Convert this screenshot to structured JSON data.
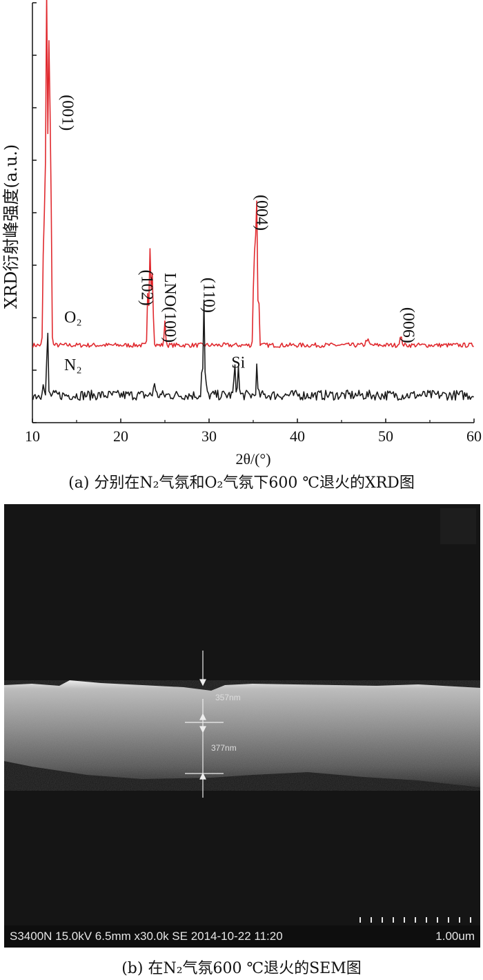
{
  "chart_data": {
    "type": "line",
    "xlabel": "2θ/(°)",
    "ylabel": "XRD衍射峰强度(a.u.)",
    "xlim": [
      10,
      60
    ],
    "x_ticks": [
      "10",
      "20",
      "30",
      "40",
      "50",
      "60"
    ],
    "series": [
      {
        "name": "O₂",
        "color": "#e0282d",
        "baseline": 1.55,
        "peaks": [
          {
            "x": 11.3,
            "y": 2.8,
            "w": 0.12
          },
          {
            "x": 11.6,
            "y": 7.0,
            "w": 0.14
          },
          {
            "x": 11.9,
            "y": 6.2,
            "w": 0.14
          },
          {
            "x": 12.1,
            "y": 2.5,
            "w": 0.1
          },
          {
            "x": 23.1,
            "y": 1.3,
            "w": 0.1
          },
          {
            "x": 23.35,
            "y": 2.3,
            "w": 0.1
          },
          {
            "x": 23.6,
            "y": 1.6,
            "w": 0.1
          },
          {
            "x": 25.0,
            "y": 0.45,
            "w": 0.12
          },
          {
            "x": 35.1,
            "y": 2.0,
            "w": 0.12
          },
          {
            "x": 35.35,
            "y": 3.7,
            "w": 0.1
          },
          {
            "x": 35.6,
            "y": 1.2,
            "w": 0.1
          },
          {
            "x": 47.9,
            "y": 0.12,
            "w": 0.2
          },
          {
            "x": 51.7,
            "y": 0.15,
            "w": 0.2
          }
        ]
      },
      {
        "name": "N₂",
        "color": "#1a1a1a",
        "baseline": 0.55,
        "peaks": [
          {
            "x": 11.2,
            "y": 0.3,
            "w": 0.12
          },
          {
            "x": 11.7,
            "y": 1.4,
            "w": 0.1
          },
          {
            "x": 23.8,
            "y": 0.3,
            "w": 0.12
          },
          {
            "x": 29.2,
            "y": 0.5,
            "w": 0.1
          },
          {
            "x": 29.4,
            "y": 1.95,
            "w": 0.08
          },
          {
            "x": 29.6,
            "y": 0.45,
            "w": 0.1
          },
          {
            "x": 32.9,
            "y": 0.55,
            "w": 0.12
          },
          {
            "x": 33.3,
            "y": 0.55,
            "w": 0.12
          },
          {
            "x": 35.4,
            "y": 0.55,
            "w": 0.1
          }
        ]
      }
    ],
    "annotations": [
      {
        "text": "(001)",
        "x": 13.4,
        "y": 6.2,
        "rotate": true
      },
      {
        "text": "(102)",
        "x": 22.4,
        "y": 2.7,
        "rotate": true
      },
      {
        "text": "LNO(100)",
        "x": 25.0,
        "y": 2.3,
        "rotate": true
      },
      {
        "text": "(110)",
        "x": 29.4,
        "y": 2.55,
        "rotate": true
      },
      {
        "text": "(004)",
        "x": 35.4,
        "y": 4.2,
        "rotate": true
      },
      {
        "text": "(006)",
        "x": 52.0,
        "y": 1.95,
        "rotate": true
      },
      {
        "text": "Si",
        "x": 33.3,
        "y": 1.1,
        "rotate": false
      },
      {
        "text": "O₂",
        "x": 14.6,
        "y": 2.0,
        "rotate": false
      },
      {
        "text": "N₂",
        "x": 14.6,
        "y": 1.05,
        "rotate": false
      }
    ]
  },
  "captions": {
    "a": "(a) 分别在N₂气氛和O₂气氛下600 ℃退火的XRD图",
    "b": "(b) 在N₂气氛600 ℃退火的SEM图"
  },
  "sem": {
    "info": "S3400N 15.0kV 6.5mm x30.0k SE  2014-10-22 11:20",
    "scale_label": "1.00um",
    "measure_1": "357nm",
    "measure_2": "377nm"
  }
}
